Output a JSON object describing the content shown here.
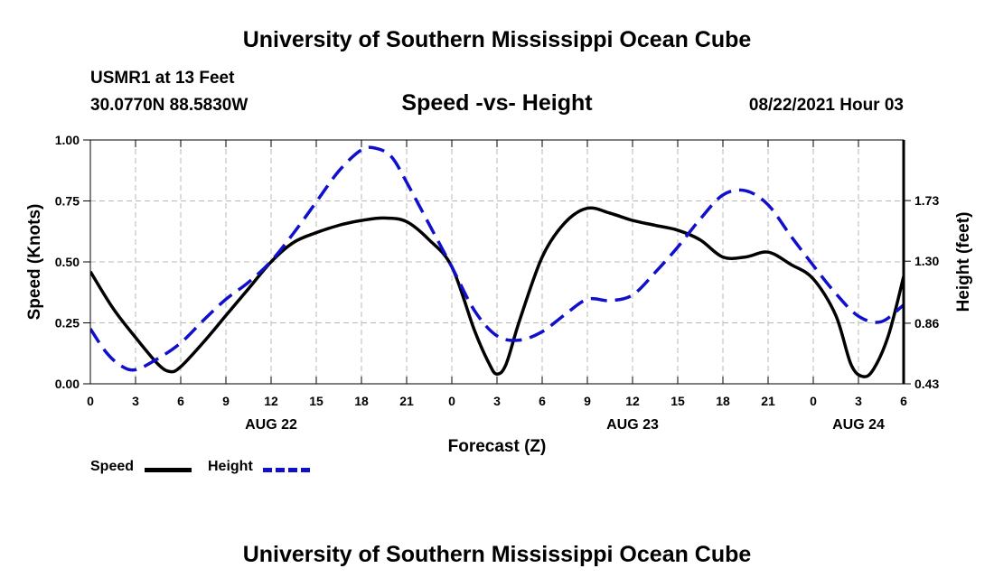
{
  "header": {
    "title": "University of Southern Mississippi Ocean Cube",
    "station": "USMR1 at 13 Feet",
    "coords": "30.0770N  88.5830W",
    "subtitle": "Speed -vs- Height",
    "datetime": "08/22/2021 Hour 03"
  },
  "footer": {
    "title": "University of Southern Mississippi Ocean Cube"
  },
  "chart_data": {
    "type": "line",
    "title": "Speed -vs- Height",
    "xlabel": "Forecast (Z)",
    "ylabel": "Speed (Knots)",
    "y2label": "Height (feet)",
    "x_range_hours": [
      0,
      54
    ],
    "x_tick_hours": [
      0,
      3,
      6,
      9,
      12,
      15,
      18,
      21,
      24,
      27,
      30,
      33,
      36,
      39,
      42,
      45,
      48,
      51,
      54
    ],
    "x_tick_labels": [
      "0",
      "3",
      "6",
      "9",
      "12",
      "15",
      "18",
      "21",
      "0",
      "3",
      "6",
      "9",
      "12",
      "15",
      "18",
      "21",
      "0",
      "3",
      "6"
    ],
    "date_labels": [
      {
        "hour": 12,
        "text": "AUG 22"
      },
      {
        "hour": 36,
        "text": "AUG 23"
      },
      {
        "hour": 51,
        "text": "AUG 24"
      }
    ],
    "ylim": [
      0,
      1
    ],
    "y_ticks": [
      0,
      0.25,
      0.5,
      0.75,
      1.0
    ],
    "y_tick_labels": [
      "0.00",
      "0.25",
      "0.50",
      "0.75",
      "1.00"
    ],
    "y2lim": [
      0.43,
      2.16
    ],
    "y2_ticks": [
      0.43,
      0.86,
      1.3,
      1.73
    ],
    "y2_tick_labels": [
      "0.43",
      "0.86",
      "1.30",
      "1.73"
    ],
    "grid": true,
    "series": [
      {
        "name": "Speed",
        "color": "#000000",
        "style": "solid",
        "axis": "left",
        "x": [
          0,
          1.5,
          3,
          4.5,
          5.3,
          6,
          7.5,
          9,
          10.5,
          12,
          13.5,
          15,
          16.5,
          18,
          19.5,
          21,
          22.5,
          24,
          25.5,
          26.5,
          27,
          27.6,
          28.5,
          30,
          31.5,
          33,
          34.5,
          36,
          37.5,
          39,
          40.5,
          42,
          43.5,
          45,
          46.5,
          48,
          49.5,
          50.5,
          51.3,
          52,
          53,
          54
        ],
        "values": [
          0.46,
          0.31,
          0.19,
          0.08,
          0.05,
          0.07,
          0.17,
          0.28,
          0.39,
          0.5,
          0.58,
          0.62,
          0.65,
          0.67,
          0.68,
          0.665,
          0.59,
          0.48,
          0.22,
          0.08,
          0.04,
          0.08,
          0.26,
          0.52,
          0.66,
          0.72,
          0.7,
          0.67,
          0.65,
          0.63,
          0.59,
          0.52,
          0.52,
          0.54,
          0.49,
          0.43,
          0.28,
          0.08,
          0.03,
          0.06,
          0.2,
          0.44
        ]
      },
      {
        "name": "Height",
        "color": "#1010cc",
        "style": "dashed",
        "axis": "right",
        "x": [
          0,
          1,
          2,
          3,
          4.5,
          6,
          7.5,
          9,
          10.5,
          12,
          13.5,
          15,
          16.5,
          18,
          19,
          20,
          21,
          22.5,
          24,
          25.5,
          27,
          28.5,
          30,
          31.5,
          33,
          34.5,
          36,
          37.5,
          39,
          40.5,
          42,
          43.5,
          45,
          46.5,
          48,
          49.5,
          51,
          52.5,
          54
        ],
        "values": [
          0.82,
          0.66,
          0.56,
          0.53,
          0.61,
          0.72,
          0.88,
          1.03,
          1.15,
          1.3,
          1.5,
          1.72,
          1.94,
          2.09,
          2.1,
          2.04,
          1.86,
          1.56,
          1.26,
          0.95,
          0.77,
          0.74,
          0.8,
          0.92,
          1.03,
          1.02,
          1.06,
          1.22,
          1.4,
          1.6,
          1.77,
          1.8,
          1.7,
          1.48,
          1.27,
          1.07,
          0.91,
          0.87,
          0.99
        ]
      }
    ]
  },
  "legend": {
    "speed_label": "Speed",
    "height_label": "Height"
  }
}
